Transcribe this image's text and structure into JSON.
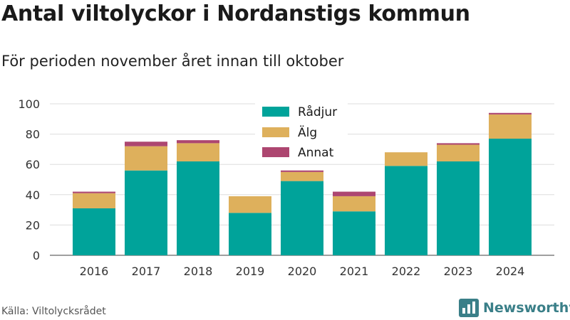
{
  "header": {
    "title": "Antal viltolyckor i Nordanstigs kommun",
    "subtitle": "För perioden november året innan till oktober"
  },
  "footer": {
    "source": "Källa: Viltolycksrådet",
    "brand": "Newsworthy",
    "brand_icon": "bar-chart-icon"
  },
  "colors": {
    "radjur": "#00a39a",
    "alg": "#deb05c",
    "annat": "#ad4670",
    "brand": "#3a7f88"
  },
  "chart_data": {
    "type": "bar",
    "stacked": true,
    "categories": [
      "2016",
      "2017",
      "2018",
      "2019",
      "2020",
      "2021",
      "2022",
      "2023",
      "2024"
    ],
    "series": [
      {
        "name": "Rådjur",
        "values": [
          31,
          56,
          62,
          28,
          49,
          29,
          59,
          62,
          77
        ]
      },
      {
        "name": "Älg",
        "values": [
          10,
          16,
          12,
          11,
          6,
          10,
          9,
          11,
          16
        ]
      },
      {
        "name": "Annat",
        "values": [
          1,
          3,
          2,
          0,
          1,
          3,
          0,
          1,
          1
        ]
      }
    ],
    "ylim": [
      0,
      100
    ],
    "yticks": [
      0,
      20,
      40,
      60,
      80,
      100
    ],
    "grid": true,
    "legend": "top-center"
  }
}
